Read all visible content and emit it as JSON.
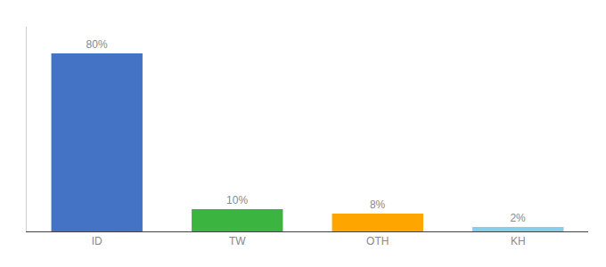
{
  "chart_data": {
    "type": "bar",
    "categories": [
      "ID",
      "TW",
      "OTH",
      "KH"
    ],
    "values": [
      80,
      10,
      8,
      2
    ],
    "value_labels": [
      "80%",
      "10%",
      "8%",
      "2%"
    ],
    "data_labels": true,
    "colors": [
      "#4472C4",
      "#3CB540",
      "#FFA500",
      "#87CEEB"
    ],
    "ylim": [
      0,
      92
    ],
    "tick_labels": "x",
    "grid": false
  }
}
